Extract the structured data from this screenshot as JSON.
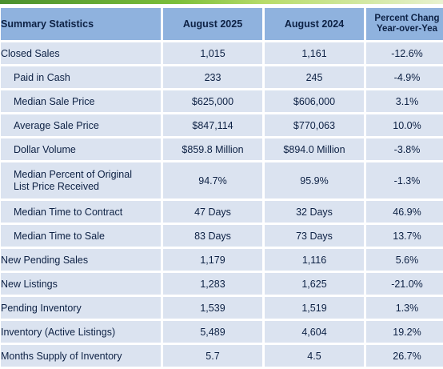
{
  "header": {
    "label": "Summary Statistics",
    "col1": "August 2025",
    "col2": "August 2024",
    "col3_line1": "Percent Chang",
    "col3_line2": "Year-over-Yea"
  },
  "rows": [
    {
      "label": "Closed Sales",
      "v2025": "1,015",
      "v2024": "1,161",
      "yoy": "-12.6%"
    },
    {
      "label": "Paid in Cash",
      "v2025": "233",
      "v2024": "245",
      "yoy": "-4.9%"
    },
    {
      "label": "Median Sale Price",
      "v2025": "$625,000",
      "v2024": "$606,000",
      "yoy": "3.1%"
    },
    {
      "label": "Average Sale Price",
      "v2025": "$847,114",
      "v2024": "$770,063",
      "yoy": "10.0%"
    },
    {
      "label": "Dollar Volume",
      "v2025": "$859.8 Million",
      "v2024": "$894.0 Million",
      "yoy": "-3.8%"
    },
    {
      "label_line1": "Median Percent of Original",
      "label_line2": "List Price Received",
      "v2025": "94.7%",
      "v2024": "95.9%",
      "yoy": "-1.3%"
    },
    {
      "label": "Median Time to Contract",
      "v2025": "47 Days",
      "v2024": "32 Days",
      "yoy": "46.9%"
    },
    {
      "label": "Median Time to Sale",
      "v2025": "83 Days",
      "v2024": "73 Days",
      "yoy": "13.7%"
    },
    {
      "label": "New Pending Sales",
      "v2025": "1,179",
      "v2024": "1,116",
      "yoy": "5.6%"
    },
    {
      "label": "New Listings",
      "v2025": "1,283",
      "v2024": "1,625",
      "yoy": "-21.0%"
    },
    {
      "label": "Pending Inventory",
      "v2025": "1,539",
      "v2024": "1,519",
      "yoy": "1.3%"
    },
    {
      "label": "Inventory (Active Listings)",
      "v2025": "5,489",
      "v2024": "4,604",
      "yoy": "19.2%"
    },
    {
      "label": "Months Supply of Inventory",
      "v2025": "5.7",
      "v2024": "4.5",
      "yoy": "26.7%"
    }
  ],
  "colors": {
    "header_bg": "#8fb2de",
    "cell_bg": "#dbe3f0",
    "text": "#0d2144",
    "accent_bar": "#7cbf3a"
  }
}
